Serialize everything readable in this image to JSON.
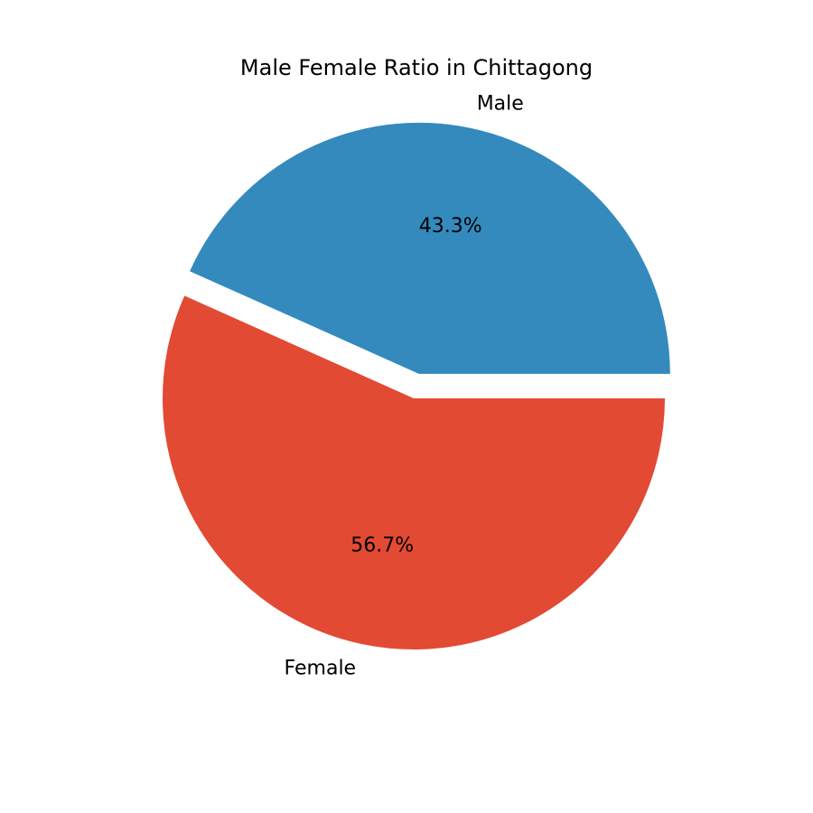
{
  "chart_data": {
    "type": "pie",
    "title": "Male Female Ratio in Chittagong",
    "slices": [
      {
        "label": "Male",
        "value": 43.3,
        "pct_label": "43.3%",
        "color": "#348abd",
        "exploded": true
      },
      {
        "label": "Female",
        "value": 56.7,
        "pct_label": "56.7%",
        "color": "#e24a33",
        "exploded": false
      }
    ],
    "legend": "none"
  }
}
